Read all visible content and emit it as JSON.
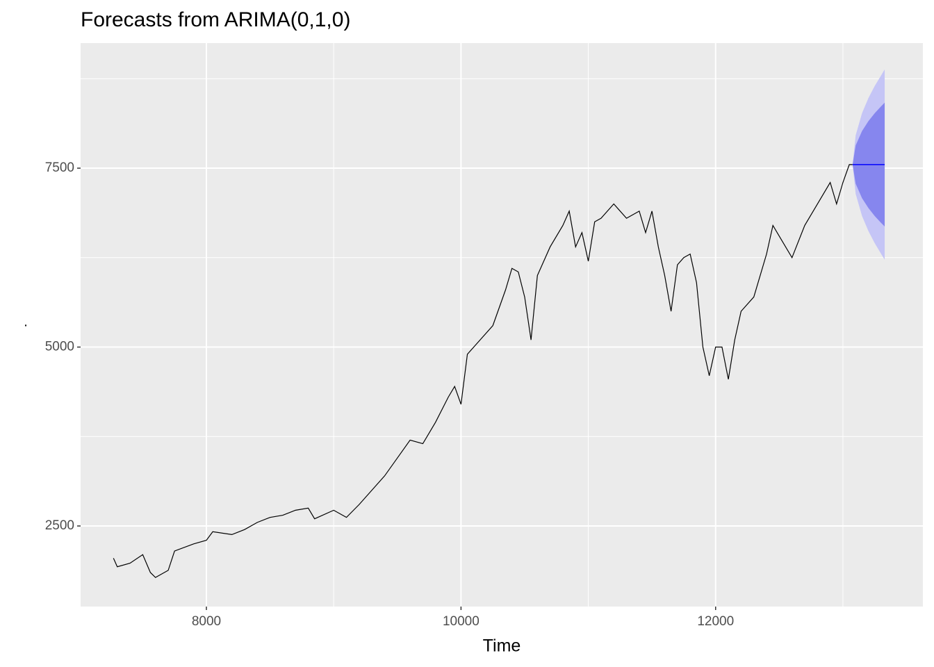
{
  "chart_data": {
    "type": "line",
    "title": "Forecasts from ARIMA(0,1,0)",
    "xlabel": "Time",
    "ylabel": ".",
    "xlim": [
      7012,
      13628
    ],
    "ylim": [
      1374,
      9248
    ],
    "xticks": [
      8000,
      10000,
      12000
    ],
    "yticks": [
      2500,
      5000,
      7500
    ],
    "xminor": [
      9000,
      11000,
      13000
    ],
    "yminor": [
      3750,
      6250,
      8750
    ],
    "grid": true,
    "series": [
      {
        "color": "#000000",
        "x": [
          7270,
          7300,
          7400,
          7500,
          7560,
          7600,
          7700,
          7750,
          7900,
          8000,
          8050,
          8200,
          8300,
          8400,
          8500,
          8600,
          8700,
          8800,
          8850,
          9000,
          9100,
          9200,
          9300,
          9400,
          9500,
          9600,
          9700,
          9800,
          9900,
          9950,
          10000,
          10050,
          10150,
          10250,
          10350,
          10400,
          10450,
          10500,
          10550,
          10600,
          10700,
          10800,
          10850,
          10900,
          10950,
          11000,
          11050,
          11100,
          11200,
          11300,
          11400,
          11450,
          11500,
          11550,
          11600,
          11650,
          11700,
          11750,
          11800,
          11850,
          11900,
          11950,
          12000,
          12050,
          12100,
          12150,
          12200,
          12300,
          12400,
          12450,
          12500,
          12600,
          12700,
          12800,
          12900,
          12950,
          13000,
          13050,
          13076
        ],
        "values": [
          2050,
          1930,
          1980,
          2100,
          1850,
          1780,
          1880,
          2150,
          2250,
          2300,
          2420,
          2380,
          2450,
          2550,
          2620,
          2650,
          2720,
          2750,
          2600,
          2720,
          2620,
          2800,
          3000,
          3200,
          3450,
          3700,
          3650,
          3950,
          4300,
          4450,
          4200,
          4900,
          5100,
          5300,
          5800,
          6100,
          6050,
          5700,
          5100,
          6000,
          6400,
          6700,
          6900,
          6400,
          6600,
          6200,
          6750,
          6800,
          7000,
          6800,
          6900,
          6600,
          6900,
          6400,
          6000,
          5500,
          6150,
          6250,
          6300,
          5900,
          5000,
          4600,
          5000,
          5000,
          4550,
          5100,
          5500,
          5700,
          6300,
          6700,
          6550,
          6250,
          6700,
          7000,
          7300,
          7000,
          7300,
          7550,
          7550
        ]
      }
    ],
    "forecast": {
      "x": [
        13076,
        13100,
        13150,
        13200,
        13250,
        13300,
        13328
      ],
      "mean": [
        7550,
        7550,
        7550,
        7550,
        7550,
        7550,
        7550
      ],
      "lower80": [
        7550,
        7283,
        7081,
        6943,
        6831,
        6735,
        6685
      ],
      "upper80": [
        7550,
        7817,
        8019,
        8157,
        8269,
        8365,
        8415
      ],
      "lower95": [
        7550,
        7141,
        6832,
        6622,
        6450,
        6303,
        6220
      ],
      "upper95": [
        7550,
        7959,
        8268,
        8478,
        8650,
        8797,
        8880
      ],
      "mean_color": "#0000ff",
      "color80": "#8686ee",
      "color95": "#c5c5f6"
    }
  }
}
